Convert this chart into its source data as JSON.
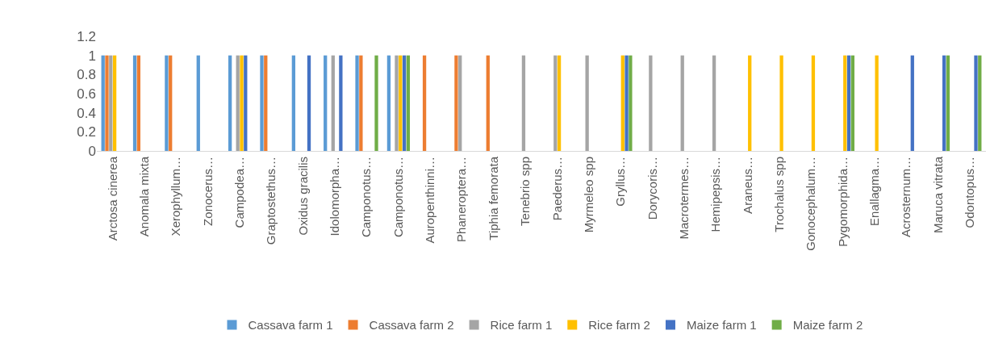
{
  "chart_data": {
    "type": "bar",
    "categories": [
      "Arctosa cinerea",
      "Anomala mixta",
      "Xerophyllum…",
      "Zonocerus…",
      "Campodea…",
      "Graptostethus…",
      "Oxidus gracilis",
      "Idolomorpha…",
      "Camponotus…",
      "Camponotus…",
      "Auropenthinni…",
      "Phaneroptera…",
      "Tiphia femorata",
      "Tenebrio spp",
      "Paederus…",
      "Myrmeleo spp",
      "Gryllus…",
      "Dorycoris…",
      "Macrotermes…",
      "Hemipepsis…",
      "Araneus…",
      "Trochalus spp",
      "Gonocephalum…",
      "Pygomorphida…",
      "Enallagma…",
      "Acrosternum…",
      "Maruca vitrata",
      "Odontopus…"
    ],
    "series": [
      {
        "name": "Cassava farm 1",
        "color": "#5b9bd5",
        "values": [
          1,
          1,
          1,
          1,
          1,
          1,
          1,
          1,
          1,
          1,
          0,
          0,
          0,
          0,
          0,
          0,
          0,
          0,
          0,
          0,
          0,
          0,
          0,
          0,
          0,
          0,
          0,
          0
        ]
      },
      {
        "name": "Cassava farm 2",
        "color": "#ed7d31",
        "values": [
          1,
          1,
          1,
          0,
          0,
          1,
          0,
          0,
          1,
          0,
          1,
          1,
          1,
          0,
          0,
          0,
          0,
          0,
          0,
          0,
          0,
          0,
          0,
          0,
          0,
          0,
          0,
          0
        ]
      },
      {
        "name": "Rice farm 1",
        "color": "#a5a5a5",
        "values": [
          1,
          0,
          0,
          0,
          1,
          0,
          0,
          1,
          0,
          1,
          0,
          1,
          0,
          1,
          1,
          1,
          0,
          1,
          1,
          1,
          0,
          0,
          0,
          0,
          0,
          0,
          0,
          0
        ]
      },
      {
        "name": "Rice farm 2",
        "color": "#ffc000",
        "values": [
          1,
          0,
          0,
          0,
          1,
          0,
          0,
          0,
          0,
          1,
          0,
          0,
          0,
          0,
          1,
          0,
          1,
          0,
          0,
          0,
          1,
          1,
          1,
          1,
          1,
          0,
          0,
          0
        ]
      },
      {
        "name": "Maize farm 1",
        "color": "#4472c4",
        "values": [
          0,
          0,
          0,
          0,
          1,
          0,
          1,
          1,
          0,
          1,
          0,
          0,
          0,
          0,
          0,
          0,
          1,
          0,
          0,
          0,
          0,
          0,
          0,
          1,
          0,
          1,
          1,
          1
        ]
      },
      {
        "name": "Maize farm 2",
        "color": "#70ad47",
        "values": [
          0,
          0,
          0,
          0,
          0,
          0,
          0,
          0,
          1,
          1,
          0,
          0,
          0,
          0,
          0,
          0,
          1,
          0,
          0,
          0,
          0,
          0,
          0,
          1,
          0,
          0,
          1,
          1
        ]
      }
    ],
    "ylim": [
      0,
      1.2
    ],
    "yticks": [
      0,
      0.2,
      0.4,
      0.6,
      0.8,
      1,
      1.2
    ],
    "grid": false,
    "legend": "bottom"
  }
}
